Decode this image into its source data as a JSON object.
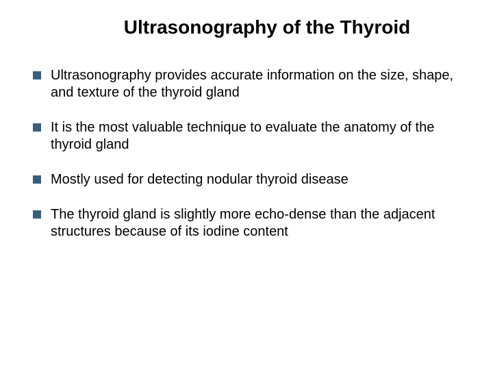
{
  "slide": {
    "title": "Ultrasonography of the Thyroid",
    "title_fontsize": 28,
    "title_fontweight": "bold",
    "title_color": "#000000",
    "background_color": "#ffffff",
    "bullets": [
      {
        "text": "Ultrasonography provides accurate information on the size, shape, and texture of the thyroid gland"
      },
      {
        "text": "It is the most valuable technique to evaluate the anatomy of the thyroid gland"
      },
      {
        "text": "Mostly used for detecting nodular thyroid disease"
      },
      {
        "text": "The thyroid gland is slightly more echo-dense than the adjacent structures because of its iodine content"
      }
    ],
    "bullet_marker_color": "#3a5f7a",
    "bullet_marker_size": 12,
    "bullet_text_fontsize": 20,
    "bullet_text_color": "#000000",
    "bullet_spacing": 26
  }
}
